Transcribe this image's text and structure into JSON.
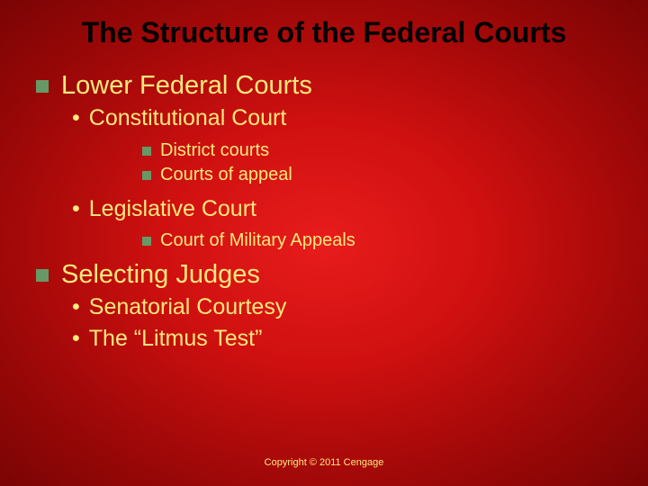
{
  "colors": {
    "title_color": "#000000",
    "text_color": "#ffe87c",
    "bullet_square_color": "#669966",
    "background_center": "#e81c1c",
    "background_edge": "#7a0404"
  },
  "typography": {
    "title_fontsize": 32,
    "level1_fontsize": 29,
    "level2_fontsize": 25,
    "level3_fontsize": 20,
    "copyright_fontsize": 11,
    "title_weight": "bold",
    "body_weight": "normal",
    "font_family": "Verdana"
  },
  "title": "The Structure of the Federal Courts",
  "outline": [
    {
      "text": "Lower Federal Courts",
      "children": [
        {
          "text": "Constitutional Court",
          "children": [
            {
              "text": "District courts"
            },
            {
              "text": "Courts of appeal"
            }
          ]
        },
        {
          "text": "Legislative Court",
          "children": [
            {
              "text": "Court of Military Appeals"
            }
          ]
        }
      ]
    },
    {
      "text": "Selecting Judges",
      "children": [
        {
          "text": "Senatorial Courtesy"
        },
        {
          "text": "The “Litmus Test”"
        }
      ]
    }
  ],
  "copyright": "Copyright © 2011 Cengage"
}
